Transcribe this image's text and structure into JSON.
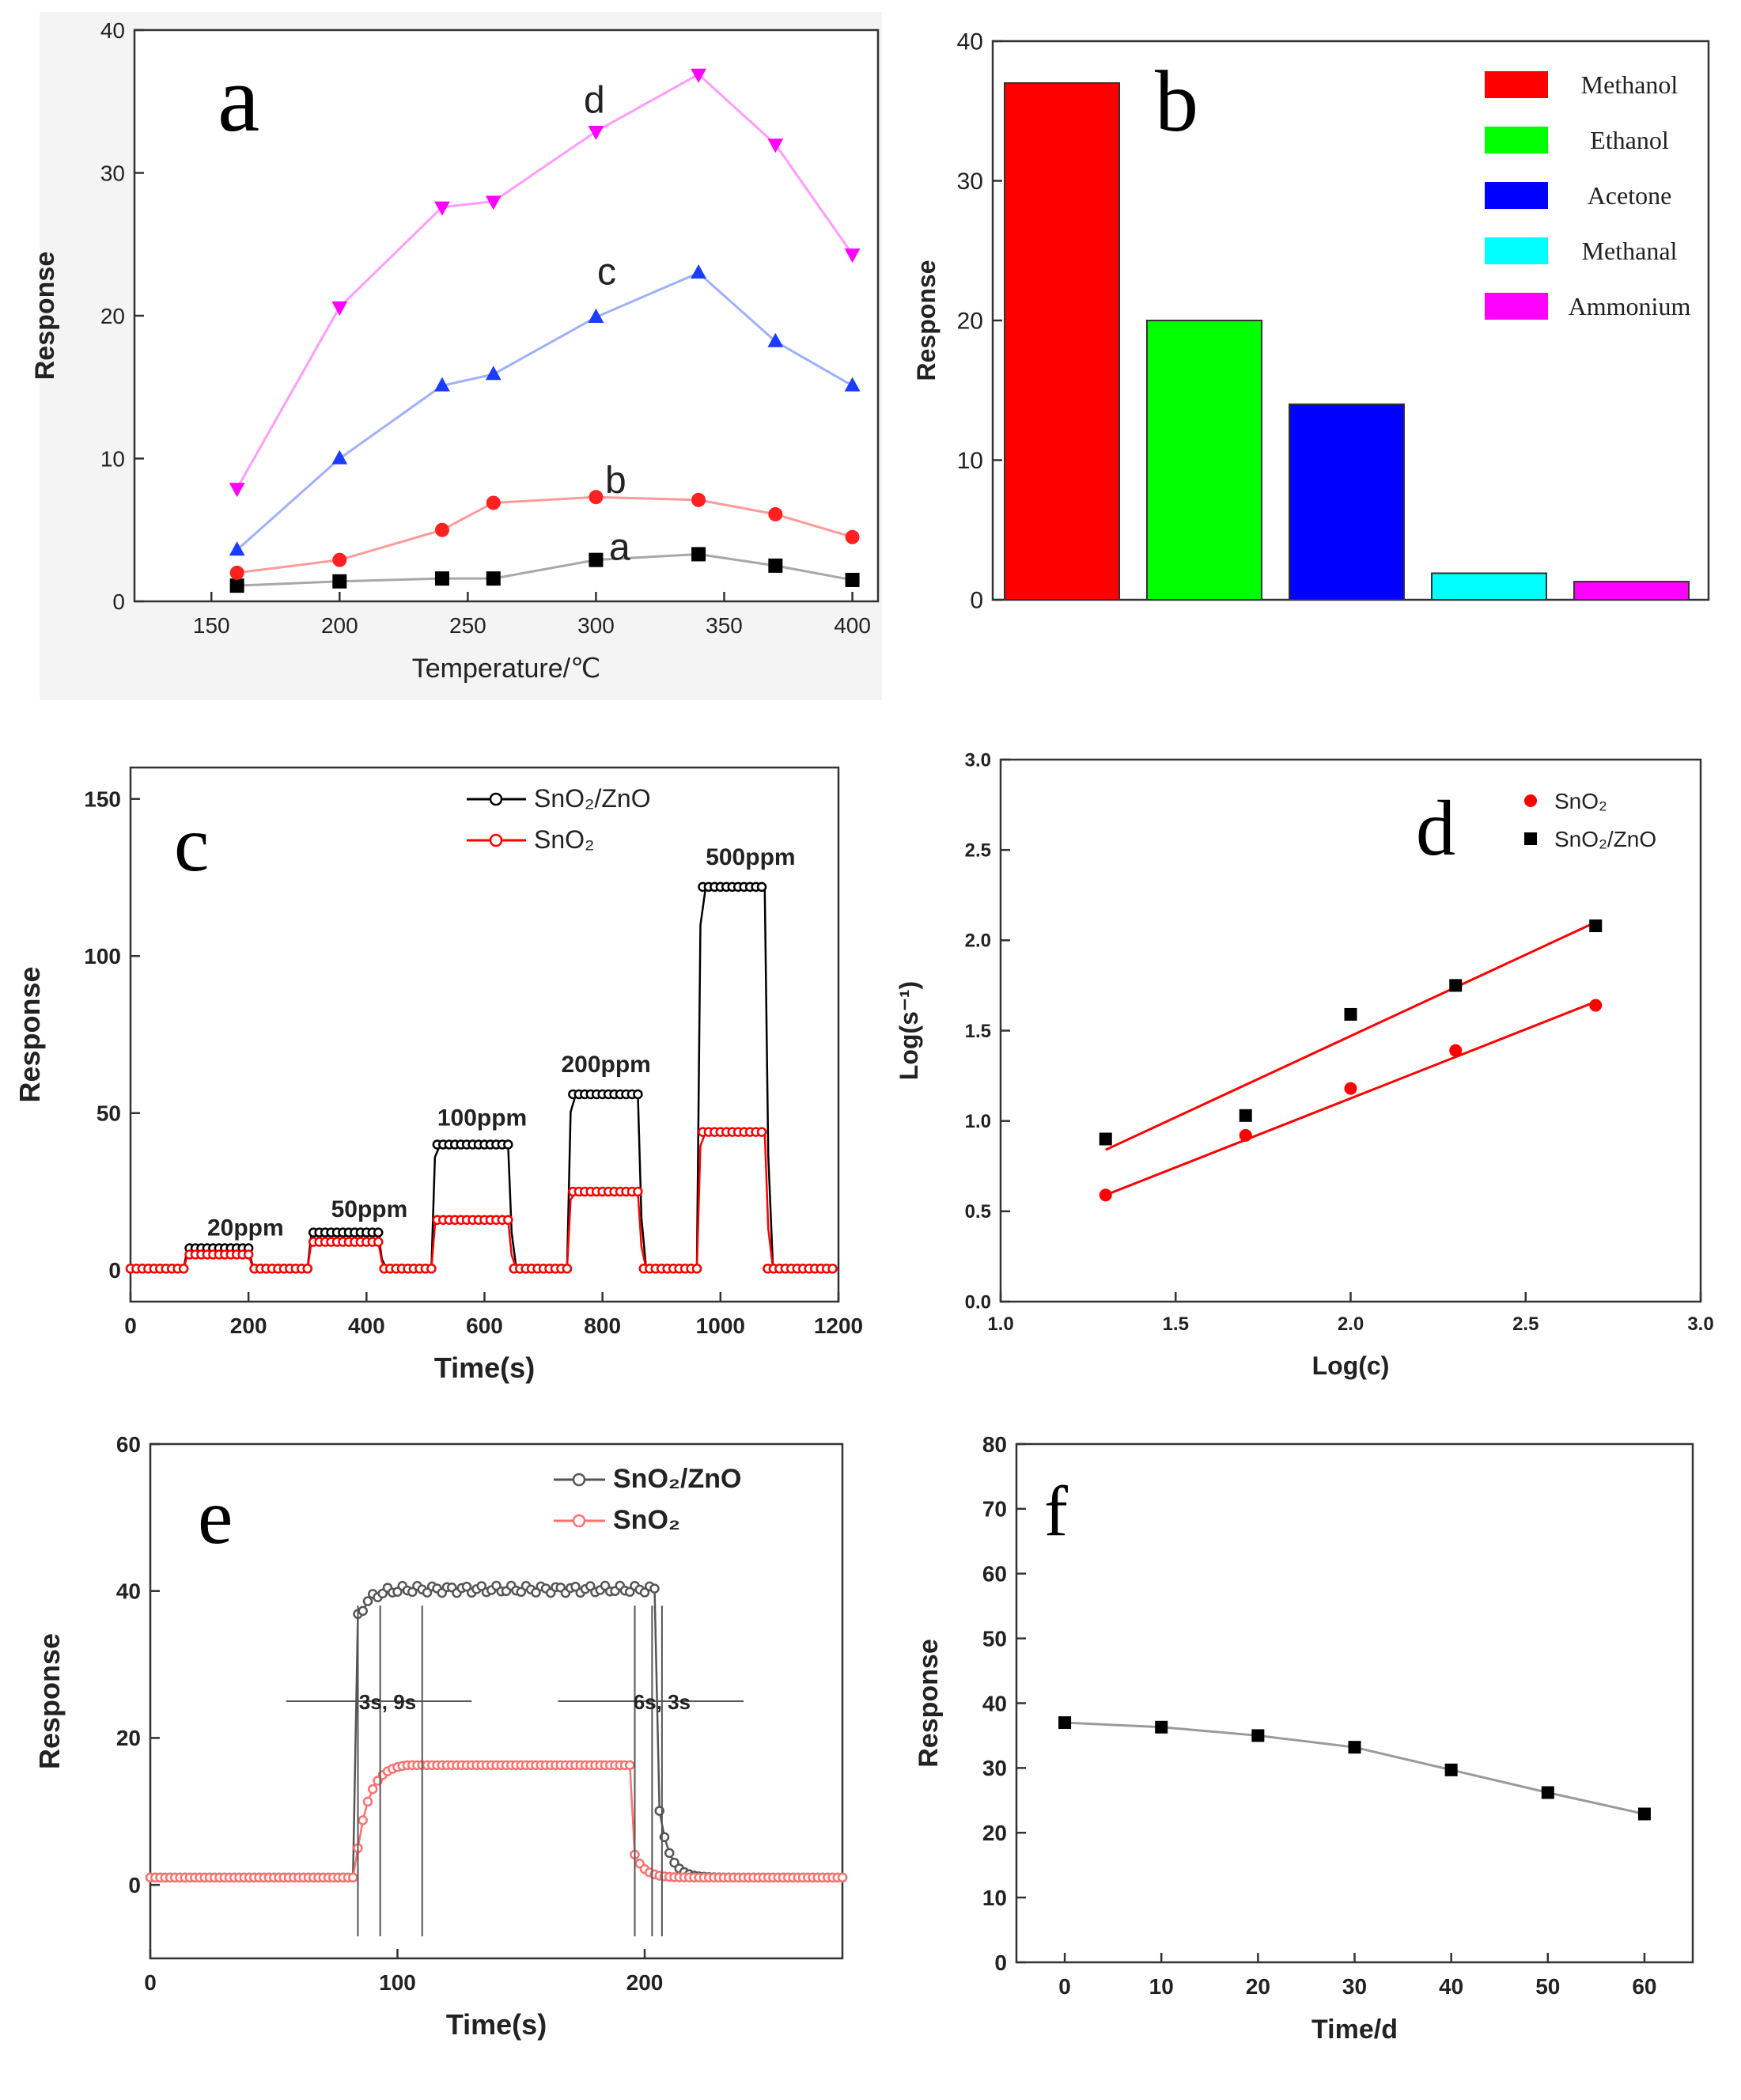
{
  "chart_data": [
    {
      "id": "a",
      "panel_label": "a",
      "type": "line",
      "xlabel": "Temperature/℃",
      "ylabel": "Response",
      "xlim": [
        120,
        410
      ],
      "ylim": [
        0,
        40
      ],
      "xticks": [
        150,
        200,
        250,
        300,
        350,
        400
      ],
      "yticks": [
        0,
        10,
        20,
        30,
        40
      ],
      "series": [
        {
          "name": "a",
          "color": "#000000",
          "line_color": "#a8a8a8",
          "marker": "square",
          "x": [
            160,
            200,
            240,
            260,
            300,
            340,
            370,
            400
          ],
          "y": [
            1.1,
            1.4,
            1.6,
            1.6,
            2.9,
            3.3,
            2.5,
            1.5
          ]
        },
        {
          "name": "b",
          "color": "#ff2020",
          "line_color": "#ff9a9a",
          "marker": "circle",
          "x": [
            160,
            200,
            240,
            260,
            300,
            340,
            370,
            400
          ],
          "y": [
            2.0,
            2.9,
            5.0,
            6.9,
            7.3,
            7.1,
            6.1,
            4.5
          ]
        },
        {
          "name": "c",
          "color": "#1a3cff",
          "line_color": "#9fb0ff",
          "marker": "triangle-up",
          "x": [
            160,
            200,
            240,
            260,
            300,
            340,
            370,
            400
          ],
          "y": [
            3.6,
            10.0,
            15.1,
            15.9,
            19.9,
            23.0,
            18.2,
            15.1
          ]
        },
        {
          "name": "d",
          "color": "#ff00ff",
          "line_color": "#ff9cff",
          "marker": "triangle-down",
          "x": [
            160,
            200,
            240,
            260,
            300,
            340,
            370,
            400
          ],
          "y": [
            7.9,
            20.6,
            27.6,
            28.0,
            32.9,
            36.9,
            32.0,
            24.3
          ]
        }
      ]
    },
    {
      "id": "b",
      "panel_label": "b",
      "type": "bar",
      "ylabel": "Response",
      "ylim": [
        0,
        40
      ],
      "yticks": [
        0,
        10,
        20,
        30,
        40
      ],
      "categories": [
        "Methanol",
        "Ethanol",
        "Acetone",
        "Methanal",
        "Ammonium"
      ],
      "values": [
        37,
        20,
        14,
        1.9,
        1.3
      ],
      "colors": [
        "#ff0000",
        "#00ff00",
        "#0000ff",
        "#00ffff",
        "#ff00ff"
      ]
    },
    {
      "id": "c",
      "panel_label": "c",
      "type": "line",
      "xlabel": "Time(s)",
      "ylabel": "Response",
      "xlim": [
        0,
        1200
      ],
      "ylim": [
        -10,
        160
      ],
      "xticks": [
        0,
        200,
        400,
        600,
        800,
        1000,
        1200
      ],
      "yticks": [
        0,
        50,
        100,
        150
      ],
      "annotations": [
        "20ppm",
        "50ppm",
        "100ppm",
        "200ppm",
        "500ppm"
      ],
      "annotation_pos": [
        [
          130,
          11
        ],
        [
          340,
          17
        ],
        [
          520,
          46
        ],
        [
          730,
          63
        ],
        [
          975,
          129
        ]
      ],
      "pulses": [
        [
          90,
          200
        ],
        [
          300,
          420
        ],
        [
          510,
          640
        ],
        [
          740,
          860
        ],
        [
          960,
          1075
        ]
      ],
      "series": [
        {
          "name": "SnO₂/ZnO",
          "color": "#000000",
          "marker": "open-circle",
          "baseline": 0.5,
          "plateaus": [
            7,
            12,
            40,
            56,
            122
          ]
        },
        {
          "name": "SnO₂",
          "color": "#ff0000",
          "marker": "open-circle",
          "baseline": 0.5,
          "plateaus": [
            5,
            9,
            16,
            25,
            44
          ]
        }
      ]
    },
    {
      "id": "d",
      "panel_label": "d",
      "type": "scatter",
      "xlabel": "Log(c)",
      "ylabel": "Log(s⁻¹)",
      "xlim": [
        1.0,
        3.0
      ],
      "ylim": [
        0.0,
        3.0
      ],
      "xticks": [
        1.0,
        1.5,
        2.0,
        2.5,
        3.0
      ],
      "yticks": [
        0.0,
        0.5,
        1.0,
        1.5,
        2.0,
        2.5,
        3.0
      ],
      "series": [
        {
          "name": "SnO₂",
          "color": "#ff0000",
          "marker": "circle",
          "x": [
            1.3,
            1.7,
            2.0,
            2.3,
            2.7
          ],
          "y": [
            0.59,
            0.92,
            1.18,
            1.39,
            1.64
          ],
          "fit": [
            [
              1.3,
              0.59
            ],
            [
              2.7,
              1.66
            ]
          ]
        },
        {
          "name": "SnO₂/ZnO",
          "color": "#000000",
          "marker": "square",
          "x": [
            1.3,
            1.7,
            2.0,
            2.3,
            2.7
          ],
          "y": [
            0.9,
            1.03,
            1.59,
            1.75,
            2.08
          ],
          "fit": [
            [
              1.3,
              0.84
            ],
            [
              2.7,
              2.1
            ]
          ]
        }
      ]
    },
    {
      "id": "e",
      "panel_label": "e",
      "type": "line",
      "xlabel": "Time(s)",
      "ylabel": "Response",
      "xlim": [
        0,
        280
      ],
      "ylim": [
        -10,
        60
      ],
      "xticks": [
        0,
        100,
        200
      ],
      "yticks": [
        0,
        20,
        40,
        60
      ],
      "annotations": [
        "3s, 9s",
        "6s, 3s"
      ],
      "series": [
        {
          "name": "SnO₂/ZnO",
          "color": "#555555",
          "marker": "open-circle",
          "on": 84,
          "off": 206,
          "baseline": 1.0,
          "plateau": 40.3,
          "start": 36.5
        },
        {
          "name": "SnO₂",
          "color": "#ff7070",
          "marker": "open-circle",
          "on": 84,
          "off": 196,
          "baseline": 1.0,
          "plateau": 16.5,
          "start": 5
        }
      ]
    },
    {
      "id": "f",
      "panel_label": "f",
      "type": "line",
      "xlabel": "Time/d",
      "ylabel": "Response",
      "xlim": [
        -5,
        65
      ],
      "ylim": [
        0,
        80
      ],
      "xticks": [
        0,
        10,
        20,
        30,
        40,
        50,
        60
      ],
      "yticks": [
        0,
        10,
        20,
        30,
        40,
        50,
        60,
        70,
        80
      ],
      "series": [
        {
          "name": "",
          "color": "#000000",
          "line_color": "#9a9a9a",
          "marker": "square",
          "x": [
            0,
            10,
            20,
            30,
            40,
            50,
            60
          ],
          "y": [
            37,
            36.3,
            35,
            33.2,
            29.7,
            26.2,
            22.9
          ]
        }
      ]
    }
  ]
}
